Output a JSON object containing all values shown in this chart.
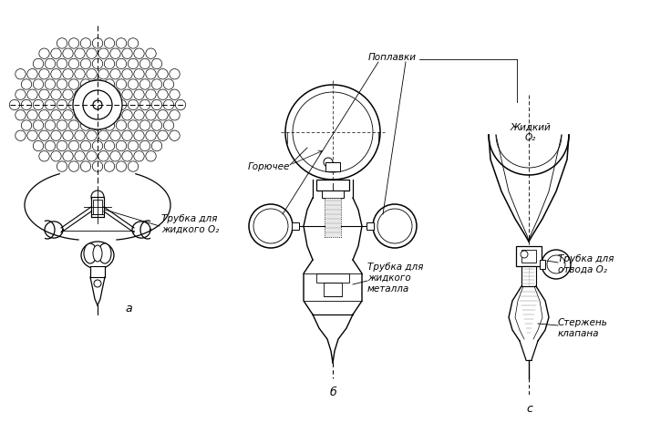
{
  "background_color": "#ffffff",
  "line_color": "#000000",
  "fig_width": 7.36,
  "fig_height": 4.75,
  "labels": {
    "горючее": "Горючее",
    "поплавки": "Поплавки",
    "трубка_жидкого_о2_a": "Трубка для\nжидкого О₂",
    "трубка_жидкого_металла": "Трубка для\nжидкого\nметалла",
    "жидкий_о2": "Жидкий\nО₂",
    "трубка_отвода_о2": "Трубка для\nотвода О₂",
    "стержень_клапана": "Стержень\nклапана",
    "label_a": "а",
    "label_b": "б",
    "label_c": "с"
  }
}
